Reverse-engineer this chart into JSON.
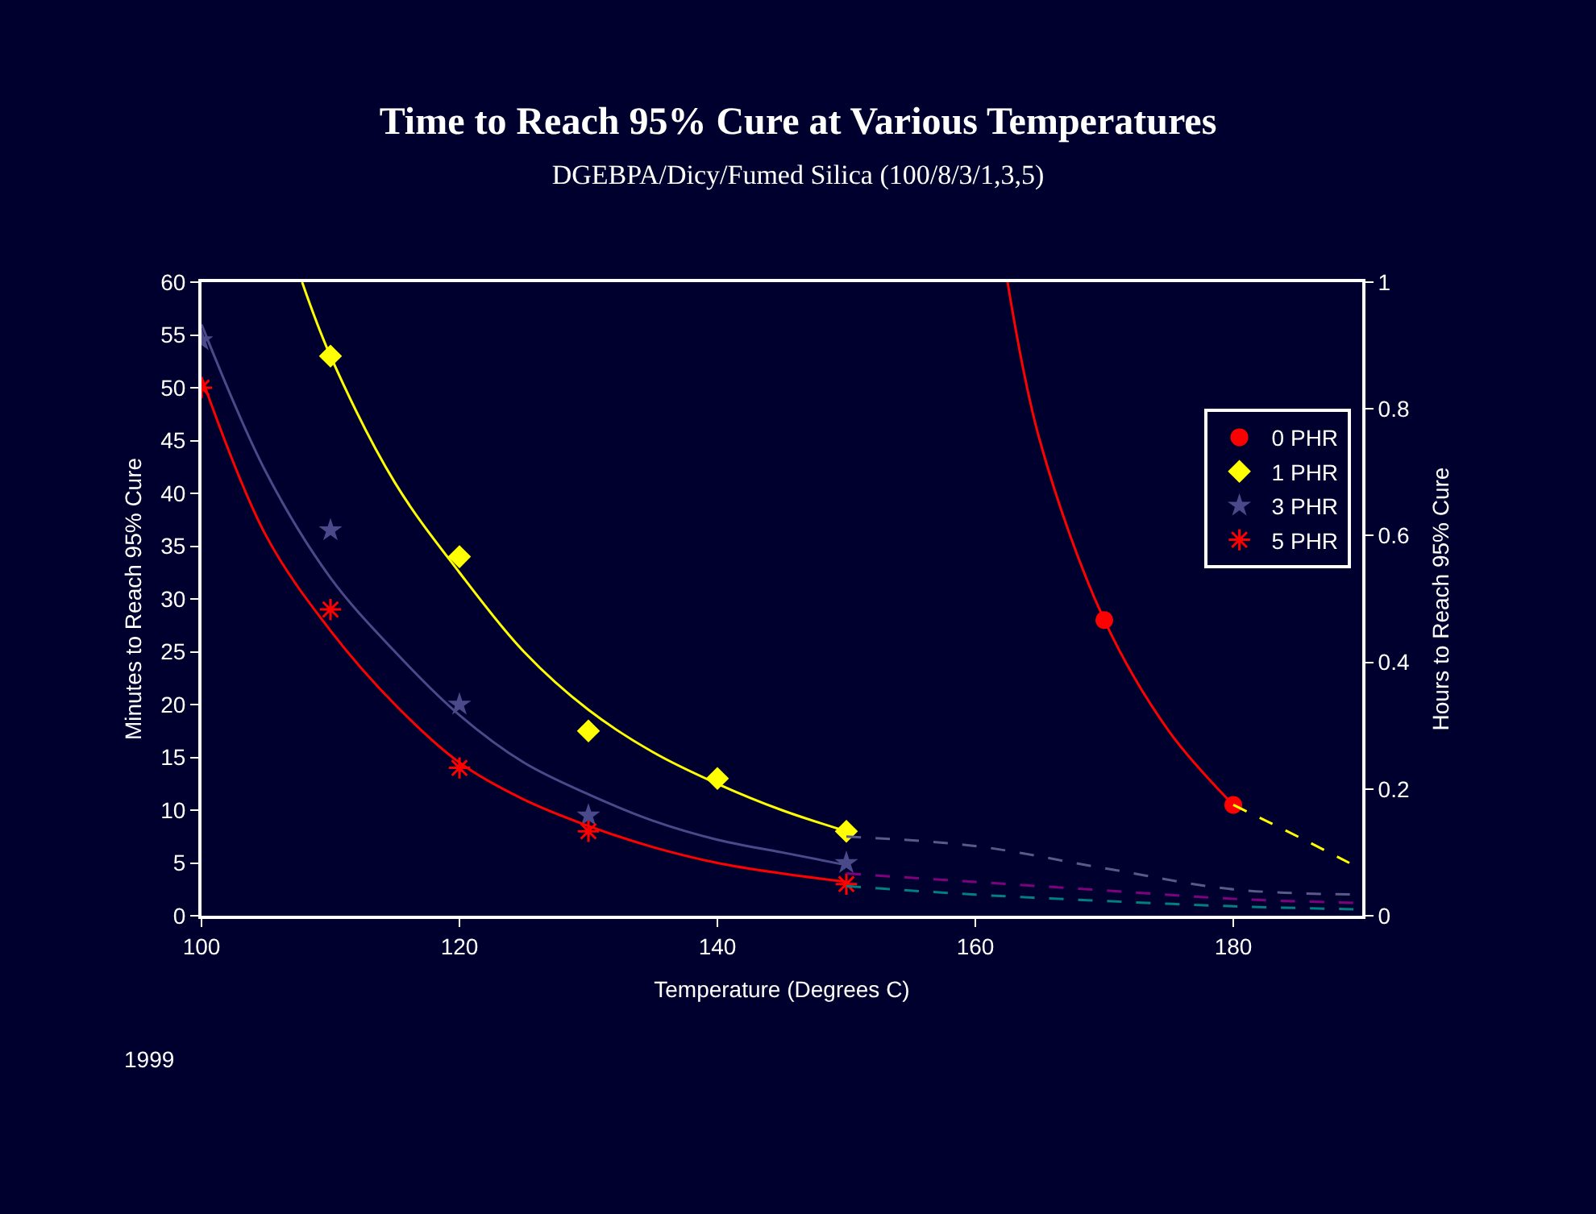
{
  "chart_data": {
    "type": "scatter",
    "title": "Time to Reach 95% Cure at Various Temperatures",
    "subtitle": "DGEBPA/Dicy/Fumed Silica (100/8/3/1,3,5)",
    "xlabel": "Temperature (Degrees C)",
    "ylabel": "Minutes to Reach 95% Cure",
    "y2label": "Hours to Reach 95% Cure",
    "xlim": [
      100,
      190
    ],
    "xticks": [
      100,
      120,
      140,
      160,
      180
    ],
    "ylim": [
      0,
      60
    ],
    "yticks": [
      0,
      5,
      10,
      15,
      20,
      25,
      30,
      35,
      40,
      45,
      50,
      55,
      60
    ],
    "y2lim": [
      0,
      1
    ],
    "y2ticks": [
      0,
      0.2,
      0.4,
      0.6,
      0.8,
      1
    ],
    "grid": false,
    "legend": "top right",
    "annotations": [
      "1999"
    ],
    "series": [
      {
        "name": "0 PHR",
        "color": "#ff0000",
        "marker": "circle",
        "x": [
          170,
          180
        ],
        "values": [
          28,
          10.5
        ]
      },
      {
        "name": "1 PHR",
        "color": "#ffff00",
        "marker": "diamond",
        "x": [
          110,
          120,
          130,
          140,
          150
        ],
        "values": [
          53,
          34,
          17.5,
          13,
          8
        ]
      },
      {
        "name": "3 PHR",
        "color": "#4a4a8a",
        "marker": "star",
        "x": [
          100,
          110,
          120,
          130,
          150
        ],
        "values": [
          54.5,
          36.5,
          20,
          9.5,
          5
        ]
      },
      {
        "name": "5 PHR",
        "color": "#ff0000",
        "marker": "cross",
        "x": [
          100,
          110,
          120,
          130,
          150
        ],
        "values": [
          50,
          29,
          14,
          8,
          3
        ]
      },
      {
        "type": "line",
        "color": "#ff0000",
        "marker": "none",
        "line_style": "solid",
        "x": [
          162.5,
          165,
          170,
          175,
          180
        ],
        "values": [
          60,
          45,
          28,
          17.5,
          10.5
        ]
      },
      {
        "type": "line",
        "color": "#ffff00",
        "marker": "none",
        "line_style": "dashed",
        "x": [
          180,
          185,
          189
        ],
        "values": [
          10.5,
          7.5,
          5
        ]
      },
      {
        "type": "line",
        "color": "#ffff00",
        "marker": "none",
        "line_style": "solid",
        "x": [
          107.8,
          110,
          115,
          120,
          125,
          130,
          135,
          140,
          145,
          150
        ],
        "values": [
          60,
          53,
          41,
          32.5,
          25,
          19.5,
          15.5,
          12.5,
          10,
          8
        ]
      },
      {
        "type": "line",
        "color": "#4a4a8a",
        "marker": "none",
        "line_style": "solid",
        "x": [
          100,
          105,
          110,
          115,
          120,
          125,
          130,
          135,
          140,
          145,
          150
        ],
        "values": [
          56,
          42,
          32,
          25,
          19,
          14.5,
          11.5,
          9,
          7.2,
          6,
          4.8
        ]
      },
      {
        "type": "line",
        "color": "#ff0000",
        "marker": "none",
        "line_style": "solid",
        "x": [
          100,
          105,
          110,
          115,
          120,
          125,
          130,
          135,
          140,
          145,
          150
        ],
        "values": [
          51,
          36,
          27,
          20,
          14.5,
          11,
          8.5,
          6.5,
          5,
          4,
          3.2
        ]
      },
      {
        "type": "line",
        "color": "#5a5a8a",
        "marker": "none",
        "line_style": "dashed",
        "x": [
          150,
          160,
          170,
          180,
          190
        ],
        "values": [
          7.5,
          6.6,
          4.5,
          2.5,
          2
        ]
      },
      {
        "type": "line",
        "color": "#800080",
        "marker": "none",
        "line_style": "dashed",
        "x": [
          150,
          160,
          170,
          180,
          190
        ],
        "values": [
          4,
          3.2,
          2.4,
          1.6,
          1.2
        ]
      },
      {
        "type": "line",
        "color": "#008080",
        "marker": "none",
        "line_style": "dashed",
        "x": [
          150,
          160,
          170,
          180,
          190
        ],
        "values": [
          2.8,
          2,
          1.4,
          0.9,
          0.6
        ]
      }
    ]
  }
}
